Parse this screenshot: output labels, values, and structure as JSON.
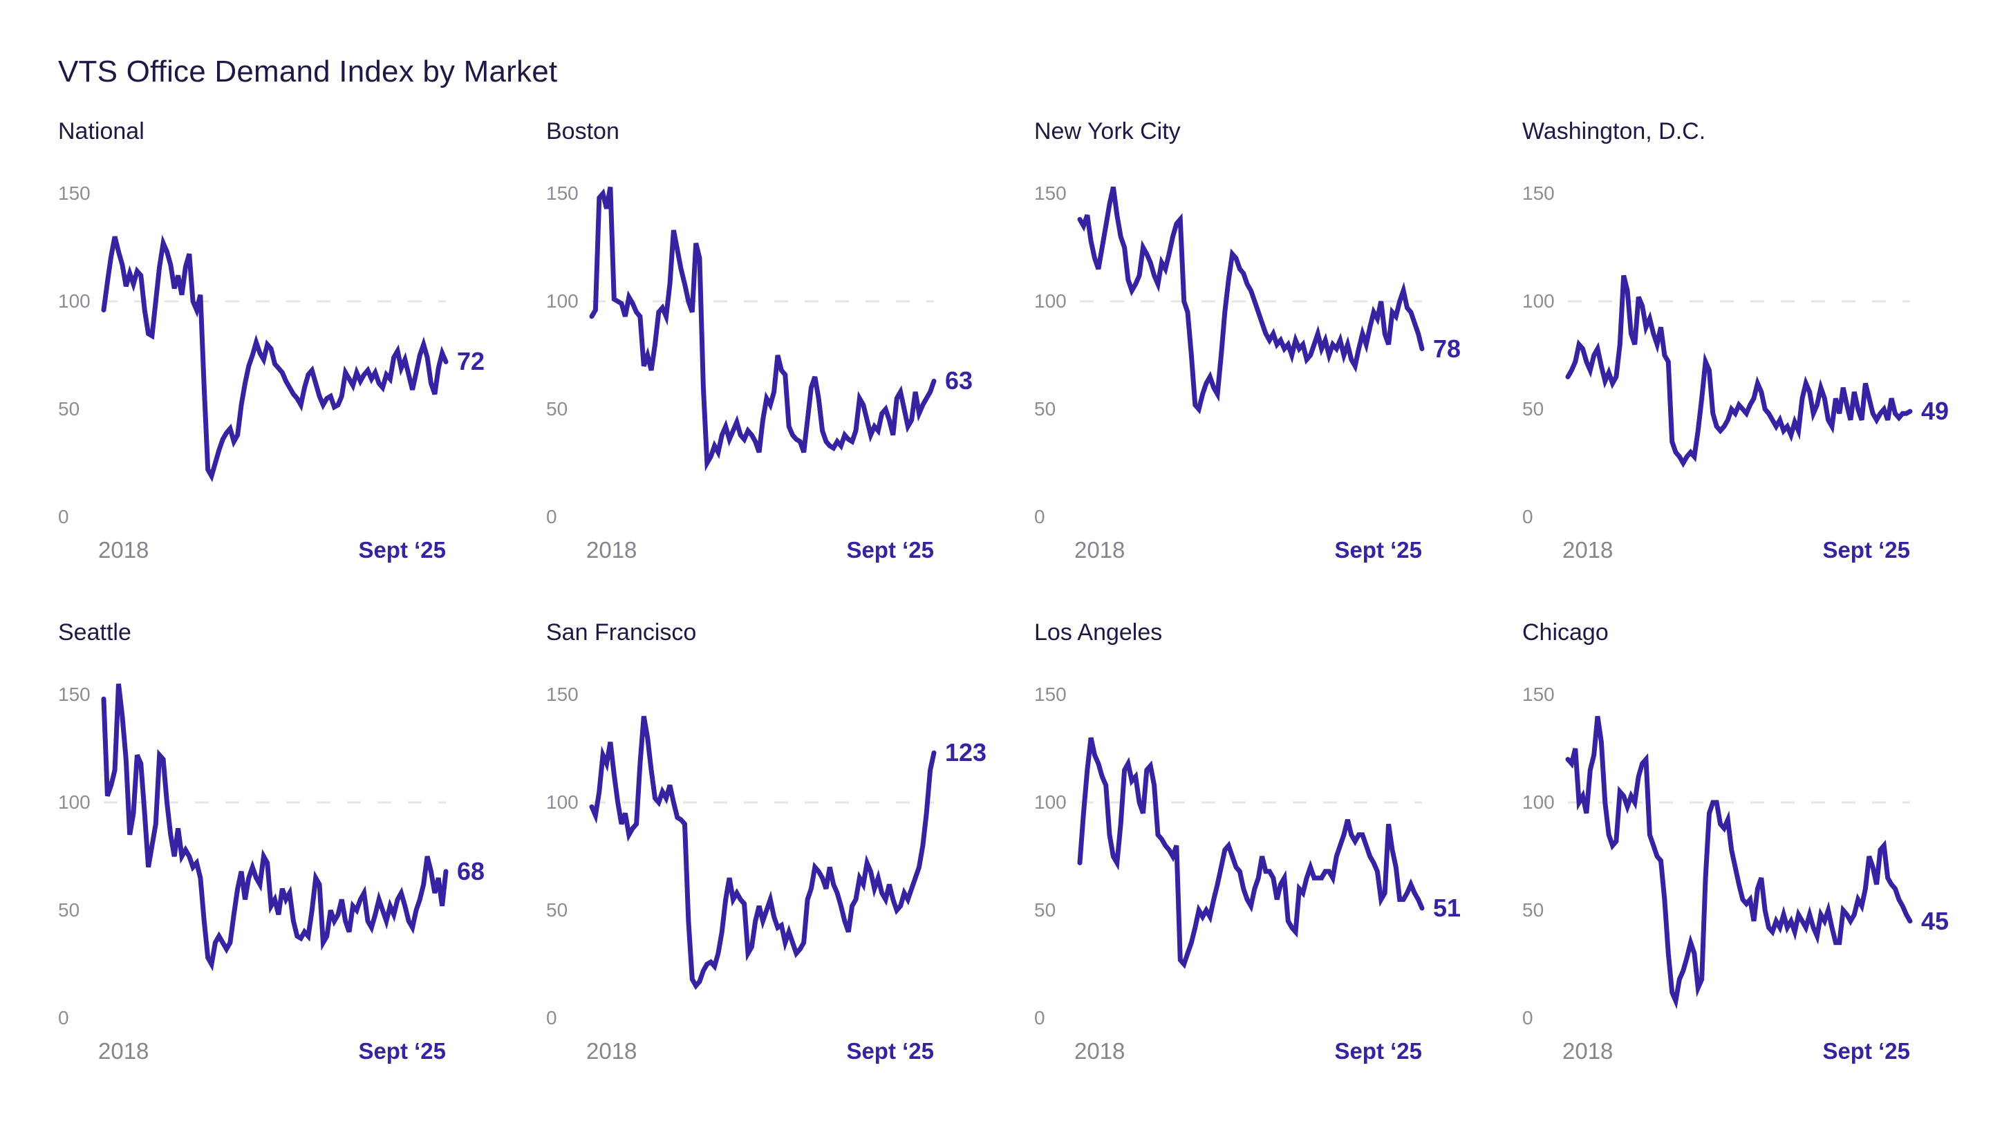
{
  "page_title": "VTS Office Demand Index by Market",
  "colors": {
    "line": "#3523A2",
    "ink": "#221744",
    "tick_gray": "#8A8E96",
    "grid": "#E5E5E9"
  },
  "axis": {
    "y_ticks": [
      150,
      100,
      50,
      0
    ],
    "y_max": 163,
    "gridline_at": 100,
    "grid_visible": "dashed line at index 100 only",
    "x_start_label": "2018",
    "x_end_label": "Sept ‘25"
  },
  "chart_data": [
    {
      "type": "line",
      "title": "National",
      "end_label": "72",
      "x": [
        "2018",
        "Sept ‘25"
      ],
      "ylim": [
        0,
        163
      ],
      "values": [
        96,
        109,
        121,
        130,
        123,
        117,
        107,
        113,
        108,
        114,
        112,
        96,
        85,
        84,
        100,
        116,
        127,
        123,
        117,
        106,
        112,
        103,
        116,
        122,
        100,
        96,
        103,
        60,
        22,
        19,
        25,
        31,
        36,
        39,
        41,
        35,
        38,
        52,
        62,
        70,
        75,
        81,
        76,
        73,
        80,
        78,
        71,
        69,
        67,
        63,
        60,
        57,
        55,
        52,
        60,
        66,
        68,
        62,
        56,
        52,
        55,
        56,
        51,
        52,
        56,
        67,
        64,
        61,
        67,
        63,
        66,
        68,
        64,
        67,
        62,
        60,
        66,
        64,
        74,
        77,
        69,
        73,
        66,
        59,
        67,
        75,
        80,
        74,
        62,
        57,
        69,
        76,
        72
      ]
    },
    {
      "type": "line",
      "title": "Boston",
      "end_label": "63",
      "x": [
        "2018",
        "Sept ‘25"
      ],
      "ylim": [
        0,
        163
      ],
      "values": [
        93,
        96,
        148,
        150,
        143,
        153,
        101,
        100,
        99,
        93,
        102,
        99,
        95,
        93,
        70,
        75,
        68,
        80,
        95,
        97,
        93,
        108,
        133,
        124,
        115,
        108,
        100,
        95,
        127,
        120,
        60,
        25,
        28,
        33,
        30,
        38,
        42,
        36,
        40,
        44,
        38,
        36,
        40,
        38,
        35,
        30,
        45,
        55,
        52,
        58,
        75,
        68,
        66,
        42,
        38,
        36,
        35,
        30,
        45,
        60,
        65,
        55,
        40,
        35,
        33,
        32,
        35,
        33,
        38,
        36,
        35,
        40,
        55,
        52,
        45,
        38,
        42,
        40,
        48,
        50,
        45,
        38,
        55,
        58,
        50,
        42,
        45,
        58,
        48,
        52,
        55,
        58,
        63
      ]
    },
    {
      "type": "line",
      "title": "New York City",
      "end_label": "78",
      "x": [
        "2018",
        "Sept ‘25"
      ],
      "ylim": [
        0,
        163
      ],
      "values": [
        138,
        135,
        140,
        128,
        120,
        115,
        125,
        135,
        145,
        153,
        140,
        130,
        125,
        110,
        105,
        108,
        112,
        125,
        122,
        118,
        112,
        108,
        118,
        115,
        122,
        130,
        136,
        138,
        100,
        95,
        75,
        52,
        50,
        57,
        62,
        65,
        60,
        57,
        75,
        95,
        110,
        122,
        120,
        115,
        113,
        108,
        105,
        100,
        95,
        90,
        85,
        82,
        85,
        80,
        82,
        78,
        80,
        75,
        82,
        78,
        80,
        73,
        75,
        80,
        85,
        78,
        82,
        75,
        80,
        78,
        82,
        75,
        80,
        73,
        70,
        78,
        85,
        80,
        88,
        95,
        92,
        100,
        85,
        80,
        95,
        93,
        100,
        105,
        97,
        95,
        90,
        85,
        78
      ]
    },
    {
      "type": "line",
      "title": "Washington, D.C.",
      "end_label": "49",
      "x": [
        "2018",
        "Sept ‘25"
      ],
      "ylim": [
        0,
        163
      ],
      "values": [
        65,
        68,
        72,
        80,
        78,
        72,
        68,
        75,
        78,
        70,
        63,
        67,
        62,
        65,
        80,
        112,
        105,
        85,
        80,
        102,
        98,
        88,
        92,
        85,
        80,
        88,
        75,
        72,
        35,
        30,
        28,
        25,
        28,
        30,
        28,
        40,
        55,
        72,
        68,
        48,
        42,
        40,
        42,
        45,
        50,
        48,
        52,
        50,
        48,
        52,
        55,
        62,
        58,
        50,
        48,
        45,
        42,
        45,
        40,
        42,
        38,
        44,
        40,
        55,
        62,
        58,
        48,
        52,
        60,
        55,
        45,
        42,
        55,
        48,
        60,
        52,
        45,
        58,
        50,
        45,
        62,
        55,
        48,
        45,
        48,
        50,
        45,
        55,
        48,
        46,
        48,
        48,
        49
      ]
    },
    {
      "type": "line",
      "title": "Seattle",
      "end_label": "68",
      "x": [
        "2018",
        "Sept ‘25"
      ],
      "ylim": [
        0,
        163
      ],
      "values": [
        148,
        103,
        108,
        115,
        155,
        140,
        120,
        85,
        95,
        122,
        118,
        95,
        70,
        80,
        90,
        122,
        120,
        100,
        85,
        75,
        88,
        75,
        78,
        75,
        70,
        72,
        65,
        45,
        28,
        25,
        35,
        38,
        35,
        32,
        35,
        48,
        60,
        68,
        55,
        65,
        70,
        65,
        62,
        75,
        72,
        52,
        55,
        48,
        60,
        55,
        58,
        45,
        38,
        37,
        40,
        38,
        50,
        65,
        62,
        35,
        38,
        50,
        45,
        48,
        55,
        45,
        40,
        52,
        50,
        55,
        58,
        45,
        42,
        48,
        55,
        50,
        45,
        52,
        48,
        55,
        58,
        52,
        45,
        42,
        50,
        55,
        62,
        75,
        68,
        58,
        65,
        52,
        68
      ]
    },
    {
      "type": "line",
      "title": "San Francisco",
      "end_label": "123",
      "x": [
        "2018",
        "Sept ‘25"
      ],
      "ylim": [
        0,
        163
      ],
      "values": [
        98,
        94,
        105,
        122,
        118,
        128,
        113,
        100,
        90,
        95,
        85,
        88,
        90,
        118,
        140,
        130,
        115,
        102,
        100,
        105,
        102,
        108,
        100,
        93,
        92,
        90,
        45,
        18,
        15,
        17,
        22,
        25,
        26,
        24,
        30,
        40,
        55,
        65,
        55,
        58,
        55,
        53,
        30,
        33,
        45,
        52,
        45,
        50,
        55,
        47,
        42,
        43,
        35,
        40,
        35,
        30,
        32,
        35,
        55,
        60,
        70,
        68,
        65,
        60,
        70,
        62,
        58,
        52,
        45,
        40,
        52,
        55,
        65,
        62,
        72,
        68,
        60,
        65,
        58,
        55,
        62,
        55,
        50,
        52,
        58,
        55,
        60,
        65,
        70,
        80,
        95,
        115,
        123
      ]
    },
    {
      "type": "line",
      "title": "Los Angeles",
      "end_label": "51",
      "x": [
        "2018",
        "Sept ‘25"
      ],
      "ylim": [
        0,
        163
      ],
      "values": [
        72,
        95,
        115,
        130,
        122,
        118,
        112,
        108,
        85,
        75,
        72,
        90,
        115,
        118,
        110,
        112,
        100,
        95,
        115,
        117,
        108,
        85,
        83,
        80,
        78,
        75,
        80,
        27,
        25,
        30,
        35,
        42,
        50,
        47,
        50,
        47,
        55,
        62,
        70,
        78,
        80,
        75,
        70,
        68,
        60,
        55,
        52,
        60,
        65,
        75,
        68,
        68,
        65,
        55,
        62,
        65,
        45,
        42,
        40,
        60,
        58,
        65,
        70,
        65,
        65,
        65,
        68,
        68,
        65,
        75,
        80,
        85,
        92,
        85,
        82,
        85,
        85,
        80,
        75,
        72,
        68,
        55,
        58,
        90,
        78,
        70,
        55,
        55,
        58,
        62,
        58,
        55,
        51
      ]
    },
    {
      "type": "line",
      "title": "Chicago",
      "end_label": "45",
      "x": [
        "2018",
        "Sept ‘25"
      ],
      "ylim": [
        0,
        163
      ],
      "values": [
        120,
        118,
        125,
        100,
        103,
        95,
        115,
        122,
        140,
        128,
        100,
        85,
        80,
        82,
        105,
        103,
        98,
        103,
        100,
        112,
        118,
        120,
        85,
        80,
        75,
        73,
        55,
        30,
        12,
        8,
        18,
        22,
        28,
        35,
        30,
        14,
        18,
        65,
        95,
        100,
        100,
        90,
        88,
        92,
        78,
        70,
        62,
        55,
        53,
        55,
        45,
        60,
        65,
        50,
        42,
        40,
        45,
        42,
        48,
        42,
        45,
        40,
        48,
        45,
        42,
        48,
        42,
        38,
        48,
        45,
        50,
        42,
        35,
        35,
        50,
        48,
        45,
        48,
        55,
        52,
        60,
        75,
        70,
        62,
        78,
        80,
        65,
        62,
        60,
        55,
        52,
        48,
        45
      ]
    }
  ]
}
